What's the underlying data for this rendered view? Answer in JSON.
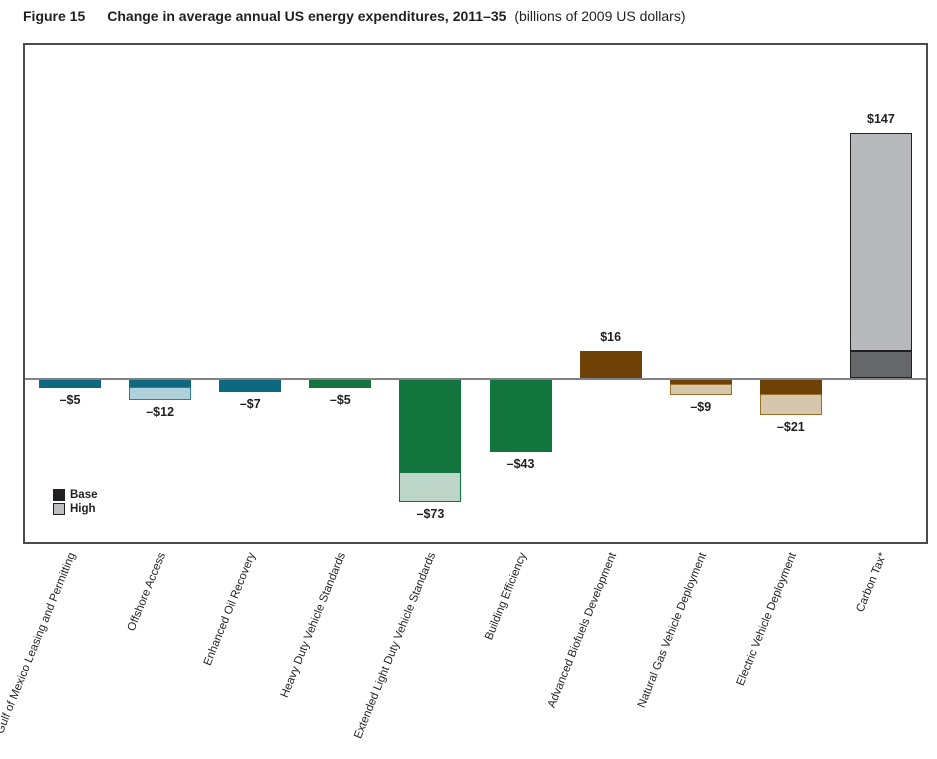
{
  "title": {
    "figure_label": "Figure 15",
    "heading": "Change in average annual US energy expenditures, 2011–35",
    "subtitle": "(billions of 2009 US dollars)"
  },
  "legend": {
    "items": [
      {
        "label": "Base",
        "color": "#231f20"
      },
      {
        "label": "High",
        "color": "#bcbdc0"
      }
    ]
  },
  "chart_data": {
    "type": "bar",
    "title": "Change in average annual US energy expenditures, 2011–35",
    "unit": "billions of 2009 US dollars",
    "categories": [
      "Gulf of Mexico Leasing and Permitting",
      "Offshore Access",
      "Enhanced Oil Recovery",
      "Heavy Duty Vehicle Standards",
      "Extended Light Duty Vehicle Standards",
      "Building Efficiency",
      "Advanced Biofuels Development",
      "Natural Gas Vehicle Deployment",
      "Electric Vehicle Deployment",
      "Carbon Tax*"
    ],
    "series": [
      {
        "name": "Base",
        "values": [
          -5,
          -4,
          -7,
          -5,
          -55,
          -43,
          16,
          -2.5,
          -8.5,
          16
        ]
      },
      {
        "name": "High",
        "values": [
          -5,
          -12,
          -7,
          -5,
          -73,
          -43,
          16,
          -9,
          -21,
          147
        ]
      }
    ],
    "value_labels": [
      "–$5",
      "–$12",
      "–$7",
      "–$5",
      "–$73",
      "–$43",
      "$16",
      "–$9",
      "–$21",
      "$147"
    ],
    "ylim": [
      -90,
      165
    ],
    "grid": false,
    "legend_position": "lower-left",
    "bar_styles": [
      {
        "base_color": "#0d6880",
        "base_border": null,
        "high_color": null,
        "high_border": null
      },
      {
        "base_color": "#0d6880",
        "base_border": null,
        "high_color": "#afd1db",
        "high_border": "#2e8099"
      },
      {
        "base_color": "#0d6880",
        "base_border": null,
        "high_color": null,
        "high_border": null
      },
      {
        "base_color": "#13753e",
        "base_border": null,
        "high_color": null,
        "high_border": null
      },
      {
        "base_color": "#13753e",
        "base_border": null,
        "high_color": "#bdd6c7",
        "high_border": "#13753e"
      },
      {
        "base_color": "#13753e",
        "base_border": null,
        "high_color": null,
        "high_border": null
      },
      {
        "base_color": "#6e4106",
        "base_border": null,
        "high_color": null,
        "high_border": null
      },
      {
        "base_color": "#6e4106",
        "base_border": null,
        "high_color": "#d5c6ac",
        "high_border": "#9c6f28"
      },
      {
        "base_color": "#6e4106",
        "base_border": null,
        "high_color": "#d5c6ac",
        "high_border": "#9c6f28"
      },
      {
        "base_color": "#67686a",
        "base_border": "#231f20",
        "high_color": "#b8b9bc",
        "high_border": "#231f20"
      }
    ]
  }
}
